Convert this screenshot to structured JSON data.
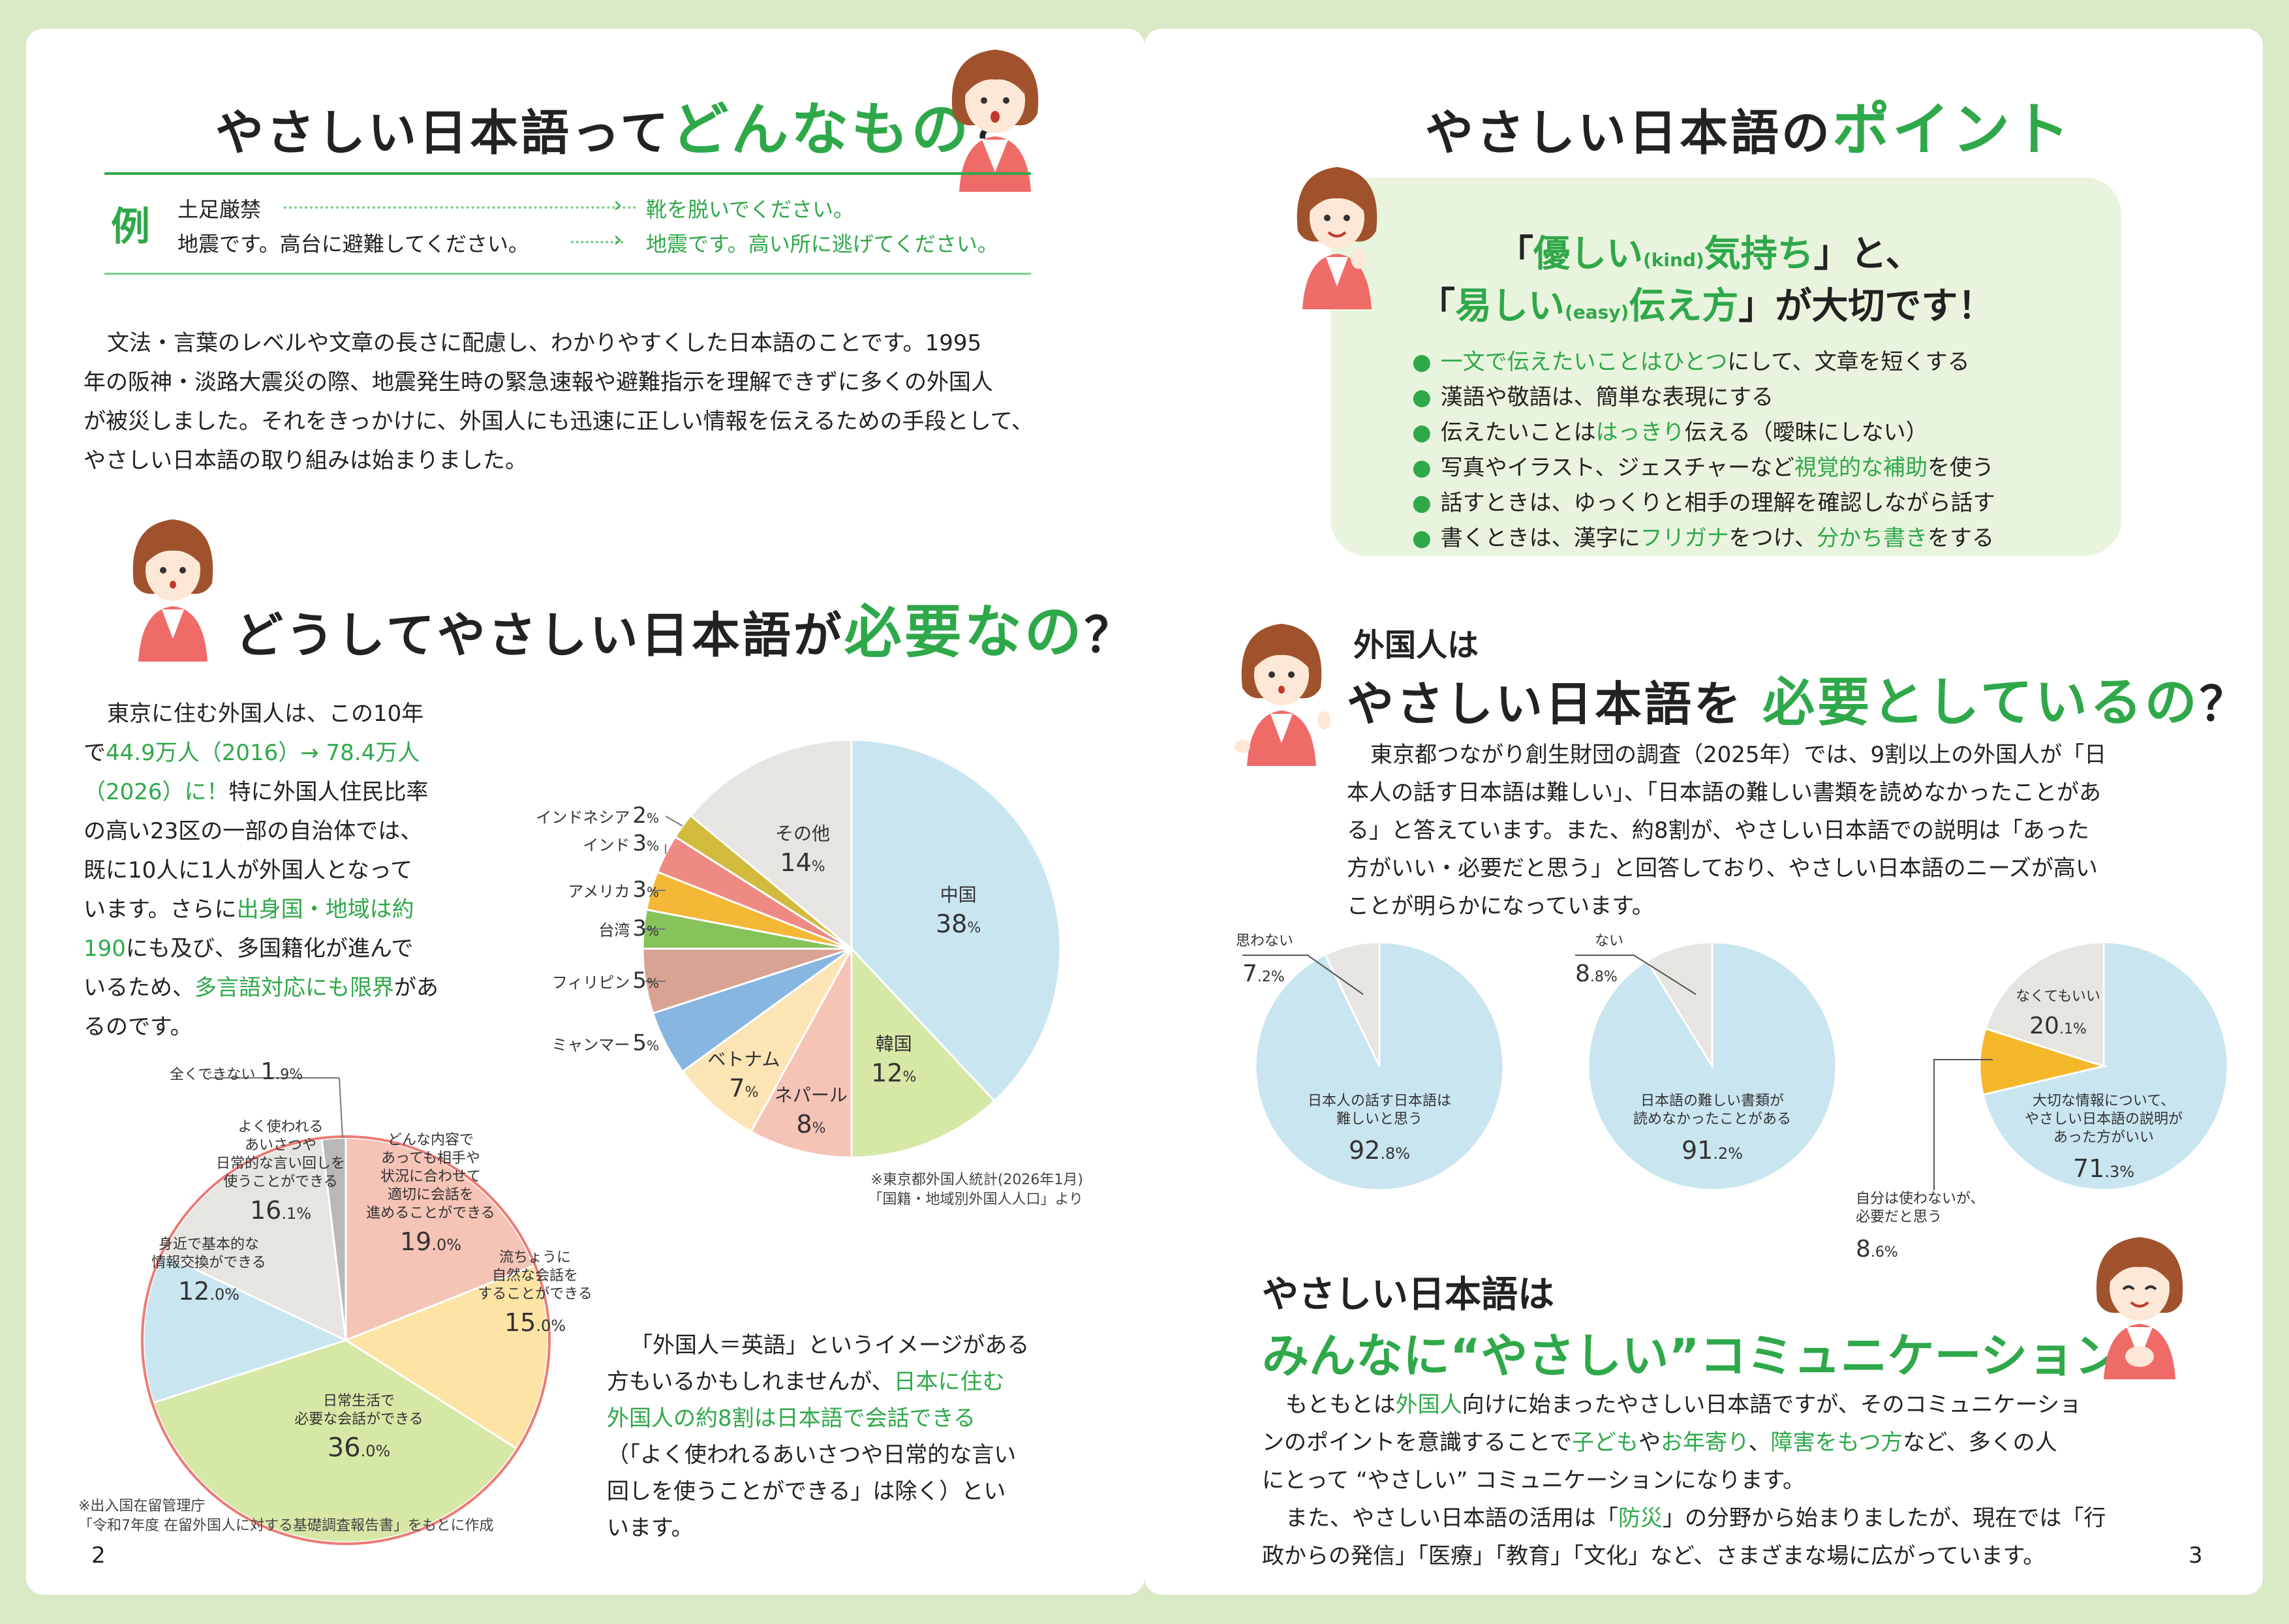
{
  "left": {
    "title1": {
      "pre": "やさしい日本語って",
      "em": "どんなもの",
      "post": "？"
    },
    "example": {
      "mark": "例",
      "row1_src": "土足厳禁",
      "row1_dst": "靴を脱いでください。",
      "row2_src": "地震です。高台に避難してください。",
      "row2_dst": "地震です。高い所に逃げてください。"
    },
    "intro": [
      "文法・言葉のレベルや文章の長さに配慮し、わかりやすくした日本語のことです。1995",
      "年の阪神・淡路大震災の際、地震発生時の緊急速報や避難指示を理解できずに多くの外国人",
      "が被災しました。それをきっかけに、外国人にも迅速に正しい情報を伝えるための手段として、",
      "やさしい日本語の取り組みは始まりました。"
    ],
    "title2": {
      "pre": "どうしてやさしい日本語が",
      "em": "必要なの",
      "post": "？"
    },
    "why": {
      "l1": "東京に住む外国人は、この10年",
      "l2a": "で",
      "l2b": "44.9万人（2016）→ 78.4万人",
      "l3a": "（2026）に！",
      "l3b": "特に外国人住民比率",
      "l4": "の高い23区の一部の自治体では、",
      "l5": "既に10人に1人が外国人となって",
      "l6a": "います。さらに",
      "l6b": "出身国・地域は約",
      "l7a": "190",
      "l7b": "にも及び、多国籍化が進んで",
      "l8a": "いるため、",
      "l8b": "多言語対応にも限界",
      "l8c": "があ",
      "l9": "るのです。"
    },
    "english": {
      "l1": "「外国人＝英語」というイメージがある",
      "l2a": "方もいるかもしれませんが、",
      "l2b": "日本に住む",
      "l3": "外国人の約8割は日本語で会話できる",
      "l4": "（「よく使われるあいさつや日常的な言い",
      "l5": "回しを使うことができる」は除く）とい",
      "l6": "います。"
    },
    "source1": {
      "l1": "※東京都外国人統計(2026年1月)",
      "l2": "「国籍・地域別外国人人口」より"
    },
    "source2": {
      "l1": "※出入国在留管理庁",
      "l2": "「令和7年度 在留外国人に対する基礎調査報告書」をもとに作成"
    },
    "page_number": "2"
  },
  "right": {
    "title": {
      "pre": "やさしい日本語の",
      "em": "ポイント"
    },
    "point": {
      "line1": {
        "a": "「",
        "b": "優しい",
        "c": "(kind)",
        "d": "気持ち",
        "e": "」と、"
      },
      "line2": {
        "a": "「",
        "b": "易しい",
        "c": "(easy)",
        "d": "伝え方",
        "e": "」が大切です！"
      },
      "bullets": [
        {
          "g": "一文で伝えたいことはひとつ",
          "t": "にして、文章を短くする"
        },
        {
          "t": "漢語や敬語は、簡単な表現にする"
        },
        {
          "t": "伝えたいことは",
          "g": "はっきり",
          "t2": "伝える（曖昧にしない）"
        },
        {
          "t": "写真やイラスト、ジェスチャーなど",
          "g": "視覚的な補助",
          "t2": "を使う"
        },
        {
          "t": "話すときは、ゆっくりと相手の理解を確認しながら話す"
        },
        {
          "t": "書くときは、漢字に",
          "g": "フリガナ",
          "t2": "をつけ、",
          "g2": "分かち書き",
          "t3": "をする"
        }
      ]
    },
    "need": {
      "kicker": "外国人は",
      "pre": "やさしい日本語を",
      "em": "必要としているの",
      "post": "？",
      "text": [
        "東京都つながり創生財団の調査（2025年）では、9割以上の外国人が「日",
        "本人の話す日本語は難しい」、「日本語の難しい書類を読めなかったことがあ",
        "る」と答えています。また、約8割が、やさしい日本語での説明は「あった",
        "方がいい・必要だと思う」と回答しており、やさしい日本語のニーズが高い",
        "ことが明らかになっています。"
      ]
    },
    "minna": {
      "kicker": "やさしい日本語は",
      "headline": "みんなに“やさしい”コミュニケーション",
      "p1": {
        "a": "もともとは",
        "b": "外国人",
        "c": "向けに始まったやさしい日本語ですが、そのコミュニケーショ",
        "d": "ンのポイントを意識することで",
        "e": "子ども",
        "f": "や",
        "g": "お年寄り",
        "h": "、",
        "i": "障害をもつ方",
        "j": "など、多くの人",
        "k": "にとって “やさしい” コミュニケーションになります。"
      },
      "p2": {
        "a": "また、やさしい日本語の活用は「",
        "b": "防災",
        "c": "」の分野から始まりましたが、現在では「行",
        "d": "政からの発信」「医療」「教育」「文化」など、さまざまな場に広がっています。"
      }
    },
    "page_number": "3"
  },
  "chart_data": [
    {
      "type": "pie",
      "title": "",
      "slices": [
        {
          "label": "中国",
          "value": 38,
          "color": "#c9e5f0"
        },
        {
          "label": "韓国",
          "value": 12,
          "color": "#d6e8a6"
        },
        {
          "label": "ネパール",
          "value": 8,
          "color": "#f6c3b7"
        },
        {
          "label": "ベトナム",
          "value": 7,
          "color": "#fde4b5"
        },
        {
          "label": "ミャンマー",
          "value": 5,
          "color": "#87b6e0"
        },
        {
          "label": "フィリピン",
          "value": 5,
          "color": "#d8a392"
        },
        {
          "label": "台湾",
          "value": 3,
          "color": "#86c35a"
        },
        {
          "label": "アメリカ",
          "value": 3,
          "color": "#f5b736"
        },
        {
          "label": "インド",
          "value": 3,
          "color": "#ef8a83"
        },
        {
          "label": "インドネシア",
          "value": 2,
          "color": "#d2bb3c"
        },
        {
          "label": "その他",
          "value": 14,
          "color": "#e7e5e2"
        }
      ]
    },
    {
      "type": "pie",
      "title": "",
      "slices": [
        {
          "label": "どんな内容であっても相手や状況に合わせて適切に会話を進めることができる",
          "value": 19.0,
          "color": "#f6c3b7"
        },
        {
          "label": "流ちょうに自然な会話をすることができる",
          "value": 15.0,
          "color": "#fde4a5"
        },
        {
          "label": "日常生活で必要な会話ができる",
          "value": 36.0,
          "color": "#d6e8a6"
        },
        {
          "label": "身近で基本的な情報交換ができる",
          "value": 12.0,
          "color": "#c9e5f0"
        },
        {
          "label": "よく使われるあいさつや日常的な言い回しを使うことができる",
          "value": 16.1,
          "color": "#e7e5e2"
        },
        {
          "label": "全くできない",
          "value": 1.9,
          "color": "#b8b8b8"
        }
      ]
    },
    {
      "type": "pie",
      "title": "",
      "slices": [
        {
          "label": "日本人の話す日本語は難しいと思う",
          "value": 92.8,
          "color": "#c9e5f0"
        },
        {
          "label": "思わない",
          "value": 7.2,
          "color": "#e7e5e2"
        }
      ]
    },
    {
      "type": "pie",
      "title": "",
      "slices": [
        {
          "label": "日本語の難しい書類が読めなかったことがある",
          "value": 91.2,
          "color": "#c9e5f0"
        },
        {
          "label": "ない",
          "value": 8.8,
          "color": "#e7e5e2"
        }
      ]
    },
    {
      "type": "pie",
      "title": "",
      "slices": [
        {
          "label": "大切な情報について、やさしい日本語の説明があった方がいい",
          "value": 71.3,
          "color": "#c9e5f0"
        },
        {
          "label": "自分は使わないが、必要だと思う",
          "value": 8.6,
          "color": "#f5b72a"
        },
        {
          "label": "なくてもいい",
          "value": 20.1,
          "color": "#e7e5e2"
        }
      ]
    }
  ]
}
